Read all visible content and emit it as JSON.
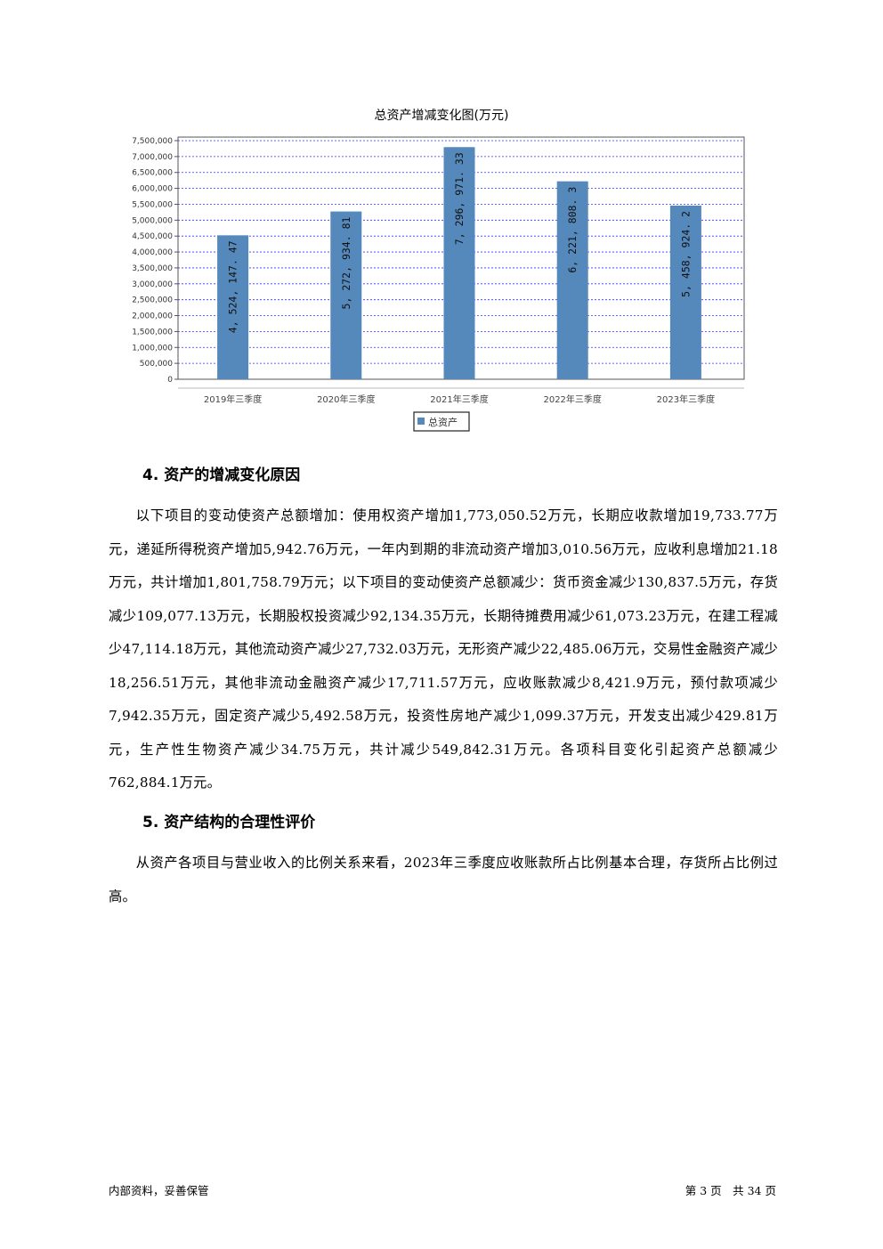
{
  "chart_data": {
    "type": "bar",
    "title": "总资产增减变化图(万元)",
    "categories": [
      "2019年三季度",
      "2020年三季度",
      "2021年三季度",
      "2022年三季度",
      "2023年三季度"
    ],
    "series": [
      {
        "name": "总资产",
        "values": [
          4524147.47,
          5272934.81,
          7296971.33,
          6221808.3,
          5458924.2
        ]
      }
    ],
    "data_labels": [
      "4, 524, 147. 47",
      "5, 272, 934. 81",
      "7, 296, 971. 33",
      "6, 221, 808. 3",
      "5, 458, 924. 2"
    ],
    "ylim": [
      0,
      7500000
    ],
    "yticks": [
      "0",
      "500,000",
      "1,000,000",
      "1,500,000",
      "2,000,000",
      "2,500,000",
      "3,000,000",
      "3,500,000",
      "4,000,000",
      "4,500,000",
      "5,000,000",
      "5,500,000",
      "6,000,000",
      "6,500,000",
      "7,000,000",
      "7,500,000"
    ],
    "grid": true,
    "legend": "bottom",
    "bar_color": "#5588bb",
    "grid_color": "#3333ff"
  },
  "sections": [
    {
      "heading": "4. 资产的增减变化原因",
      "text": "以下项目的变动使资产总额增加：使用权资产增加1,773,050.52万元，长期应收款增加19,733.77万元，递延所得税资产增加5,942.76万元，一年内到期的非流动资产增加3,010.56万元，应收利息增加21.18万元，共计增加1,801,758.79万元；以下项目的变动使资产总额减少：货币资金减少130,837.5万元，存货减少109,077.13万元，长期股权投资减少92,134.35万元，长期待摊费用减少61,073.23万元，在建工程减少47,114.18万元，其他流动资产减少27,732.03万元，无形资产减少22,485.06万元，交易性金融资产减少18,256.51万元，其他非流动金融资产减少17,711.57万元，应收账款减少8,421.9万元，预付款项减少7,942.35万元，固定资产减少5,492.58万元，投资性房地产减少1,099.37万元，开发支出减少429.81万元，生产性生物资产减少34.75万元，共计减少549,842.31万元。各项科目变化引起资产总额减少762,884.1万元。"
    },
    {
      "heading": "5. 资产结构的合理性评价",
      "text": "从资产各项目与营业收入的比例关系来看，2023年三季度应收账款所占比例基本合理，存货所占比例过高。"
    }
  ],
  "footer": {
    "left": "内部资料，妥善保管",
    "right": "第 3 页　共 34 页"
  }
}
